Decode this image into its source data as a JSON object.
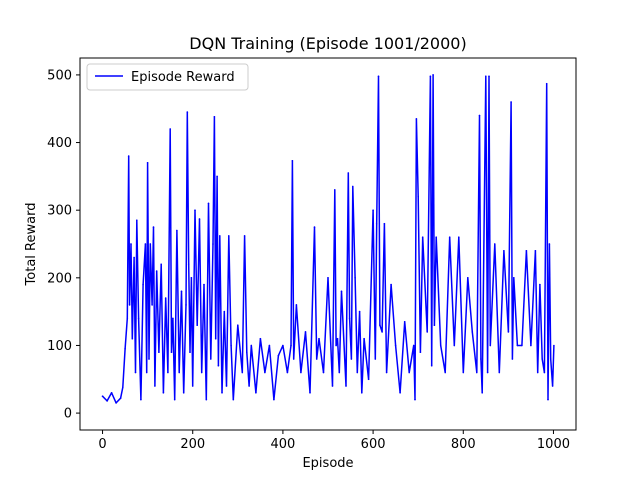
{
  "chart_data": {
    "type": "line",
    "title": "DQN Training (Episode 1001/2000)",
    "xlabel": "Episode",
    "ylabel": "Total Reward",
    "xlim": [
      -50,
      1050
    ],
    "ylim": [
      -25,
      525
    ],
    "xticks": [
      0,
      200,
      400,
      600,
      800,
      1000
    ],
    "yticks": [
      0,
      100,
      200,
      300,
      400,
      500
    ],
    "grid": false,
    "legend_position": "top-left",
    "series": [
      {
        "name": "Episode Reward",
        "color": "#0000ff",
        "x": [
          0,
          10,
          20,
          30,
          40,
          45,
          50,
          55,
          58,
          60,
          63,
          66,
          70,
          73,
          76,
          80,
          85,
          90,
          95,
          98,
          100,
          103,
          106,
          110,
          113,
          116,
          120,
          125,
          130,
          135,
          140,
          145,
          150,
          153,
          156,
          160,
          165,
          170,
          175,
          180,
          185,
          188,
          191,
          194,
          197,
          200,
          205,
          210,
          215,
          220,
          225,
          230,
          235,
          240,
          245,
          248,
          251,
          254,
          257,
          260,
          265,
          270,
          275,
          280,
          285,
          290,
          300,
          310,
          315,
          320,
          325,
          330,
          340,
          350,
          360,
          370,
          380,
          390,
          400,
          410,
          418,
          421,
          424,
          430,
          440,
          450,
          460,
          470,
          475,
          480,
          490,
          500,
          510,
          515,
          518,
          521,
          525,
          530,
          540,
          545,
          548,
          552,
          555,
          560,
          565,
          570,
          575,
          580,
          590,
          600,
          605,
          608,
          612,
          615,
          620,
          625,
          630,
          640,
          650,
          660,
          670,
          680,
          690,
          693,
          696,
          700,
          705,
          710,
          720,
          727,
          730,
          733,
          736,
          740,
          750,
          760,
          770,
          780,
          790,
          800,
          810,
          820,
          830,
          836,
          839,
          842,
          850,
          854,
          857,
          860,
          870,
          880,
          890,
          900,
          906,
          909,
          912,
          920,
          930,
          940,
          950,
          960,
          965,
          970,
          975,
          980,
          985,
          988,
          991,
          994,
          998,
          1001
        ],
        "y": [
          25,
          18,
          30,
          15,
          22,
          38,
          95,
          140,
          380,
          160,
          250,
          110,
          230,
          60,
          285,
          140,
          20,
          190,
          250,
          60,
          370,
          80,
          250,
          160,
          275,
          40,
          210,
          90,
          220,
          30,
          170,
          60,
          420,
          90,
          140,
          20,
          270,
          60,
          180,
          30,
          160,
          445,
          220,
          90,
          200,
          40,
          300,
          130,
          287,
          60,
          190,
          20,
          310,
          80,
          250,
          438,
          110,
          350,
          70,
          262,
          30,
          150,
          40,
          262,
          100,
          20,
          130,
          60,
          262,
          90,
          40,
          100,
          30,
          110,
          60,
          100,
          20,
          85,
          100,
          60,
          100,
          373,
          80,
          160,
          60,
          120,
          30,
          275,
          80,
          110,
          60,
          200,
          40,
          330,
          100,
          110,
          60,
          180,
          40,
          355,
          140,
          80,
          335,
          200,
          60,
          150,
          30,
          110,
          50,
          300,
          80,
          280,
          498,
          130,
          120,
          280,
          60,
          190,
          100,
          30,
          135,
          60,
          100,
          20,
          435,
          320,
          90,
          260,
          120,
          498,
          70,
          500,
          130,
          260,
          100,
          60,
          260,
          100,
          260,
          60,
          200,
          120,
          60,
          440,
          80,
          30,
          498,
          60,
          498,
          100,
          250,
          60,
          240,
          120,
          460,
          80,
          200,
          100,
          100,
          240,
          100,
          240,
          60,
          190,
          80,
          60,
          487,
          20,
          250,
          80,
          40,
          100
        ]
      }
    ]
  }
}
